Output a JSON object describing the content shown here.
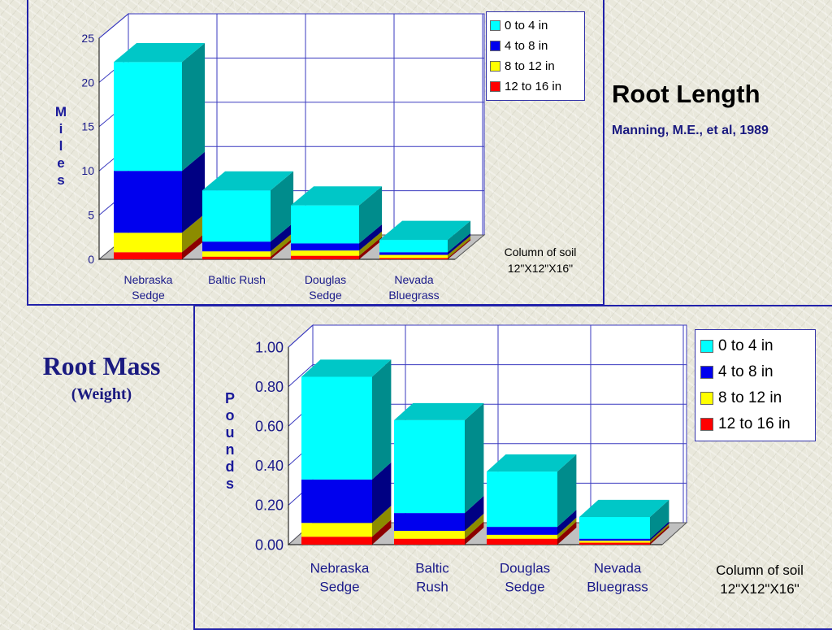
{
  "slide": {
    "root_length_title": "Root Length",
    "root_length_citation": "Manning, M.E., et al, 1989",
    "root_mass_title": "Root Mass",
    "root_mass_subtitle": "(Weight)"
  },
  "colors": {
    "0 to 4 in": "#00ffff",
    "4 to 8 in": "#0000ee",
    "8 to 12 in": "#ffff00",
    "12 to 16 in": "#ff0000",
    "gridlines": "#3a3abf",
    "frame": "#2222aa"
  },
  "chart_data": [
    {
      "type": "bar",
      "stacked": true,
      "three_d": true,
      "ylabel": "Miles",
      "ylabel_letters": [
        "M",
        "i",
        "l",
        "e",
        "s"
      ],
      "ylim": [
        0,
        25
      ],
      "yticks": [
        "0",
        "5",
        "10",
        "15",
        "20",
        "25"
      ],
      "categories": [
        "Nebraska\nSedge",
        "Baltic Rush",
        "Douglas\nSedge",
        "Nevada\nBluegrass"
      ],
      "series": [
        {
          "name": "12 to 16 in",
          "values": [
            0.8,
            0.3,
            0.4,
            0.15
          ]
        },
        {
          "name": "8 to 12 in",
          "values": [
            2.2,
            0.6,
            0.6,
            0.35
          ]
        },
        {
          "name": "4 to 8 in",
          "values": [
            7.0,
            1.1,
            0.8,
            0.3
          ]
        },
        {
          "name": "0 to 4 in",
          "values": [
            12.3,
            5.8,
            4.3,
            1.4
          ]
        }
      ],
      "legend": [
        "0 to 4 in",
        "4 to 8 in",
        "8 to 12 in",
        "12 to 16 in"
      ],
      "legend_position": "top-right",
      "grid": true,
      "note": "Column of soil\n12\"X12\"X16\""
    },
    {
      "type": "bar",
      "stacked": true,
      "three_d": true,
      "ylabel": "Pounds",
      "ylabel_letters": [
        "P",
        "o",
        "u",
        "n",
        "d",
        "s"
      ],
      "ylim": [
        0,
        1.0
      ],
      "yticks": [
        "0.00",
        "0.20",
        "0.40",
        "0.60",
        "0.80",
        "1.00"
      ],
      "categories": [
        "Nebraska\nSedge",
        "Baltic\nRush",
        "Douglas\nSedge",
        "Nevada\nBluegrass"
      ],
      "series": [
        {
          "name": "12 to 16 in",
          "values": [
            0.04,
            0.03,
            0.03,
            0.01
          ]
        },
        {
          "name": "8 to 12 in",
          "values": [
            0.07,
            0.04,
            0.02,
            0.01
          ]
        },
        {
          "name": "4 to 8 in",
          "values": [
            0.22,
            0.09,
            0.04,
            0.01
          ]
        },
        {
          "name": "0 to 4 in",
          "values": [
            0.52,
            0.47,
            0.28,
            0.11
          ]
        }
      ],
      "legend": [
        "0 to 4 in",
        "4 to 8 in",
        "8 to 12 in",
        "12 to 16 in"
      ],
      "legend_position": "top-right",
      "grid": true,
      "note": "Column of soil\n12\"X12\"X16\""
    }
  ]
}
